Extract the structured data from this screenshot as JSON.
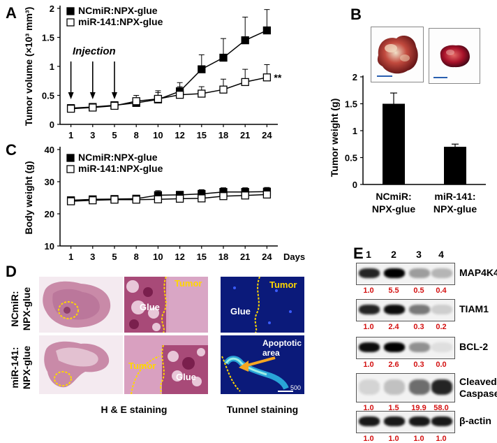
{
  "panel_labels": {
    "a": "A",
    "b": "B",
    "c": "C",
    "d": "D",
    "e": "E"
  },
  "colors": {
    "highlight": "#d31010",
    "dotted": "#ffd700",
    "arrow": "#f5a623",
    "he_pink": "#c98aa8",
    "tunnel_blue": "#0a1f8f"
  },
  "chart_data": [
    {
      "type": "line",
      "panel": "A",
      "title": "",
      "xlabel": "",
      "ylabel": "Tumor volume (×10³ mm³)",
      "categories": [
        "1",
        "3",
        "5",
        "8",
        "10",
        "12",
        "15",
        "18",
        "21",
        "24"
      ],
      "ylim": [
        0,
        2
      ],
      "yticks": [
        "0",
        "0.5",
        "1",
        "1.5",
        "2"
      ],
      "series": [
        {
          "name": "NCmiR:NPX-glue",
          "marker": "filled-square",
          "values": [
            0.28,
            0.3,
            0.33,
            0.37,
            0.43,
            0.57,
            0.95,
            1.15,
            1.45,
            1.62
          ],
          "errors": [
            0.06,
            0.06,
            0.06,
            0.08,
            0.12,
            0.15,
            0.25,
            0.33,
            0.4,
            0.36
          ]
        },
        {
          "name": "miR-141:NPX-glue",
          "marker": "open-square",
          "values": [
            0.27,
            0.29,
            0.32,
            0.4,
            0.44,
            0.51,
            0.53,
            0.6,
            0.73,
            0.81
          ],
          "errors": [
            0.06,
            0.06,
            0.06,
            0.1,
            0.14,
            0.14,
            0.12,
            0.18,
            0.22,
            0.22
          ]
        }
      ],
      "annotation_text": "Injection",
      "injection_days": [
        "1",
        "3",
        "5"
      ],
      "significance": "**"
    },
    {
      "type": "bar",
      "panel": "B",
      "title": "",
      "xlabel": "",
      "ylabel": "Tumor weight (g)",
      "categories": [
        [
          "NCmiR:",
          "NPX-glue"
        ],
        [
          "miR-141:",
          "NPX-glue"
        ]
      ],
      "values": [
        1.5,
        0.7
      ],
      "errors": [
        0.2,
        0.05
      ],
      "ylim": [
        0,
        2
      ],
      "yticks": [
        "0",
        "0.5",
        "1",
        "1.5",
        "2"
      ]
    },
    {
      "type": "line",
      "panel": "C",
      "title": "",
      "xlabel": "Days",
      "ylabel": "Body weight (g)",
      "categories": [
        "1",
        "3",
        "5",
        "8",
        "10",
        "12",
        "15",
        "18",
        "21",
        "24"
      ],
      "ylim": [
        10,
        40
      ],
      "yticks": [
        "10",
        "20",
        "30",
        "40"
      ],
      "series": [
        {
          "name": "NCmiR:NPX-glue",
          "marker": "filled-square",
          "values": [
            24.2,
            24.5,
            24.6,
            24.7,
            25.8,
            25.9,
            26.2,
            26.8,
            26.8,
            26.9
          ],
          "errors": [
            0.6,
            0.6,
            0.6,
            0.7,
            1.4,
            1.0,
            1.3,
            1.3,
            1.3,
            1.3
          ]
        },
        {
          "name": "miR-141:NPX-glue",
          "marker": "open-square",
          "values": [
            23.9,
            24.2,
            24.4,
            24.4,
            24.5,
            24.7,
            24.8,
            25.5,
            25.7,
            26.0
          ],
          "errors": [
            0.6,
            0.6,
            0.6,
            0.7,
            0.8,
            0.8,
            0.8,
            1.0,
            1.0,
            1.0
          ]
        }
      ]
    }
  ],
  "panel_d": {
    "row_labels": [
      [
        "NCmiR:",
        "NPX-glue"
      ],
      [
        "miR-141:",
        "NPX-glue"
      ]
    ],
    "tumor_label": "Tumor",
    "glue_label": "Glue",
    "apoptotic_label": [
      "Apoptotic",
      "area"
    ],
    "he_caption": "H & E staining",
    "tunnel_caption": "Tunnel staining",
    "scale_bar_text": "500"
  },
  "panel_e": {
    "lane_numbers": [
      "1",
      "2",
      "3",
      "4"
    ],
    "blots": [
      {
        "label": [
          "MAP4K4"
        ],
        "values": [
          "1.0",
          "5.5",
          "0.5",
          "0.4"
        ]
      },
      {
        "label": [
          "TIAM1"
        ],
        "values": [
          "1.0",
          "2.4",
          "0.3",
          "0.2"
        ]
      },
      {
        "label": [
          "BCL-2"
        ],
        "values": [
          "1.0",
          "2.6",
          "0.3",
          "0.0"
        ]
      },
      {
        "label": [
          "Cleaved",
          "Caspase"
        ],
        "values": [
          "1.0",
          "1.5",
          "19.9",
          "58.0"
        ]
      },
      {
        "label": [
          "β-actin"
        ],
        "values": [
          "1.0",
          "1.0",
          "1.0",
          "1.0"
        ]
      }
    ]
  }
}
